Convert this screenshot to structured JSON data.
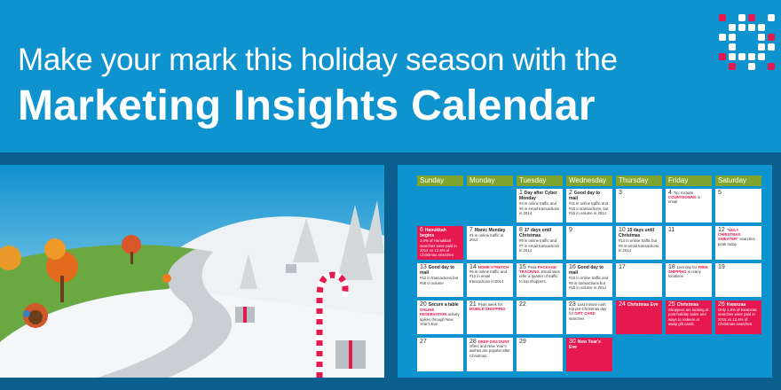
{
  "headline": {
    "subtitle": "Make your mark this holiday season with the",
    "title": "Marketing Insights Calendar"
  },
  "colors": {
    "brand_blue": "#0f93cf",
    "accent_red": "#e5184f",
    "header_green": "#7fa52f"
  },
  "calendar": {
    "days": [
      "Sunday",
      "Monday",
      "Tuesday",
      "Wednesday",
      "Thursday",
      "Friday",
      "Saturday"
    ],
    "cells": [
      {
        "num": "1",
        "title": "Day after Cyber Monday",
        "text": "#4 in online traffic and #6 in email transactions in 2014"
      },
      {
        "num": "2",
        "title": "Good day to mail",
        "text": "#11 in online traffic and #10 in transactions, but #15 in volume in 2014"
      },
      {
        "num": "3"
      },
      {
        "num": "4",
        "pre": "Tip: Include ",
        "hl": "COUNTDOWNS",
        "text": " in email"
      },
      {
        "num": "5"
      },
      {
        "num": "6",
        "title": "Hanukkah begins",
        "text": "3.0% of Hanukkah searches were paid in 2014 vs 13.4% of Christmas searches",
        "red": true
      },
      {
        "num": "7",
        "title": "Manic Monday",
        "text": "#1 in online traffic in 2014"
      },
      {
        "num": "8",
        "title": "17 days until Christmas",
        "text": "#9 in online traffic and #7 in email transactions in 2014"
      },
      {
        "num": "9"
      },
      {
        "num": "10",
        "title": "15 days until Christmas",
        "text": "#14 in online traffic but #9 in email transactions in 2014"
      },
      {
        "num": "11"
      },
      {
        "num": "12",
        "hl": "\"UGLY CHRISTMAS SWEATER\"",
        "text": " searches peak today"
      },
      {
        "num": "13",
        "title": "Good day to mail",
        "text": "#12 in transactions but #58 in volume"
      },
      {
        "num": "14",
        "hl": "HOME STRETCH",
        "text": " #6 in online traffic and #12 in email transactions in 2014"
      },
      {
        "num": "15",
        "pre": "Peak ",
        "hl": "PACKAGE TRACKING.",
        "text": " Email sites refer a quarter of traffic to top shoppers."
      },
      {
        "num": "16",
        "title": "Good day to mail",
        "text": "#10 in online traffic and #8 in transactions but #10 in volume in 2014"
      },
      {
        "num": "17"
      },
      {
        "num": "18",
        "pre": "Last day for ",
        "hl": "FREE SHIPPING",
        "text": " in many locations"
      },
      {
        "num": "19"
      },
      {
        "num": "20",
        "title": "Secure a table",
        "hl": "ONLINE RESERVATION",
        "text": " activity spikes through New Year's Eve"
      },
      {
        "num": "21",
        "pre": "Peak week for ",
        "hl": "MOBILE SHOPPING"
      },
      {
        "num": "22"
      },
      {
        "num": "23",
        "pre": "Last minute rush: top pre-Christmas day for ",
        "hl": "GIFT CARD",
        "text": " searches"
      },
      {
        "num": "24",
        "title": "Christmas Eve",
        "red": true
      },
      {
        "num": "25",
        "title": "Christmas",
        "text": "Shoppers are looking at post-holiday sales and ways to redeem or swap gift cards",
        "red": true
      },
      {
        "num": "26",
        "title": "Kwanzaa",
        "text": "Only 1.8% of Kwanzaa searches were paid in 2015 vs 13.4% of Christmas searches",
        "red": true
      },
      {
        "num": "27"
      },
      {
        "num": "28",
        "hl": "DEEP DISCOUNT",
        "text": " offers and New Year's wishes are popular after Christmas"
      },
      {
        "num": "29"
      },
      {
        "num": "30",
        "title": "New Year's Eve",
        "red": true
      }
    ]
  }
}
